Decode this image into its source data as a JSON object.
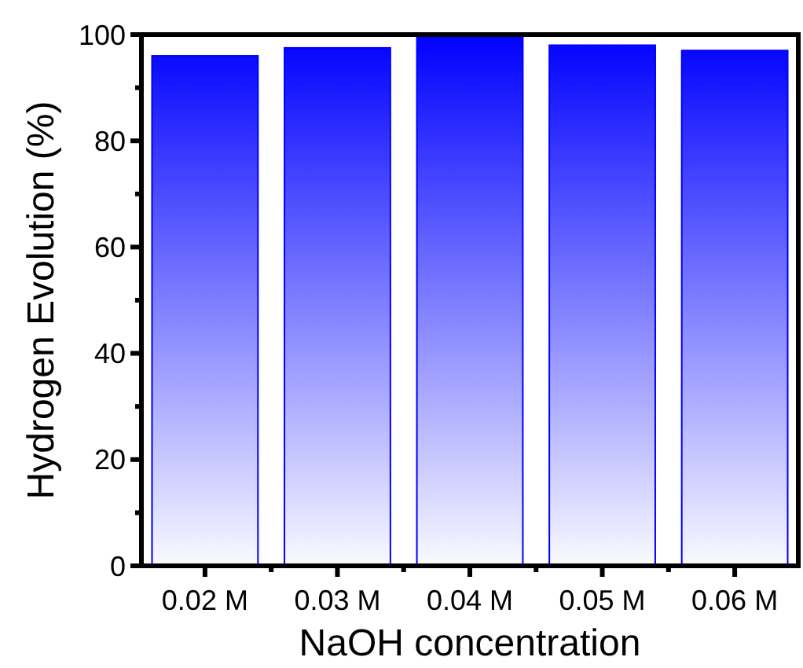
{
  "chart_data": {
    "type": "bar",
    "xlabel": "NaOH concentration",
    "ylabel": "Hydrogen Evolution (%)",
    "categories": [
      "0.02 M",
      "0.03 M",
      "0.04 M",
      "0.05 M",
      "0.06 M"
    ],
    "values": [
      96,
      97.5,
      100,
      98,
      97
    ],
    "color": "#0000ff",
    "ylim": [
      0,
      100
    ],
    "yticks": [
      0,
      20,
      40,
      60,
      80,
      100
    ]
  }
}
